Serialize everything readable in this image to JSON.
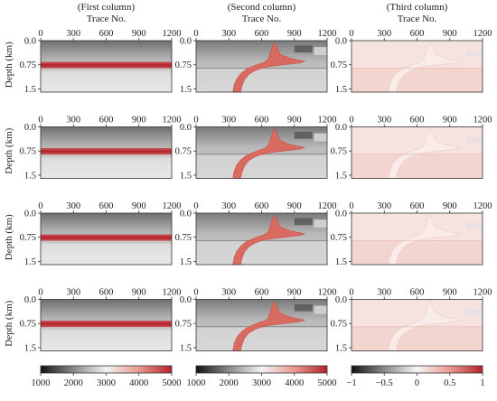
{
  "column_titles": [
    "(First column)",
    "(Second column)",
    "(Third column)"
  ],
  "colorbars": [
    {
      "ticks": [
        "1000",
        "2000",
        "3000",
        "4000",
        "5000"
      ],
      "stops": [
        "#111111",
        "#8a8a8a",
        "#f2f2f2",
        "#e99a90",
        "#b3222a"
      ]
    },
    {
      "ticks": [
        "1000",
        "2000",
        "3000",
        "4000",
        "5000"
      ],
      "stops": [
        "#111111",
        "#8a8a8a",
        "#f2f2f2",
        "#e99a90",
        "#b3222a"
      ]
    },
    {
      "ticks": [
        "−1",
        "−0.5",
        "0",
        "0.5",
        "1"
      ],
      "stops": [
        "#111111",
        "#8a8a8a",
        "#f5f5f5",
        "#e99a90",
        "#b3222a"
      ]
    }
  ],
  "chart_data": {
    "type": "heatmap",
    "rows": 4,
    "columns": [
      "(First column)",
      "(Second column)",
      "(Third column)"
    ],
    "xlabel": "Trace No.",
    "ylabel": "Depth (km)",
    "xticks": [
      0,
      300,
      600,
      900,
      1200
    ],
    "xtick_labels": [
      "0",
      "300",
      "600",
      "900",
      "1200"
    ],
    "xlim": [
      0,
      1200
    ],
    "yticks": [
      0.0,
      0.75,
      1.5
    ],
    "ytick_labels": [
      "0.0",
      "0.75",
      "1.5"
    ],
    "ylim": [
      0,
      1.6
    ],
    "colorbars": [
      {
        "column": 1,
        "range": [
          1000,
          5000
        ],
        "ticks": [
          1000,
          2000,
          3000,
          4000,
          5000
        ]
      },
      {
        "column": 2,
        "range": [
          1000,
          5000
        ],
        "ticks": [
          1000,
          2000,
          3000,
          4000,
          5000
        ]
      },
      {
        "column": 3,
        "range": [
          -1,
          1
        ],
        "ticks": [
          -1,
          -0.5,
          0,
          0.5,
          1
        ]
      }
    ]
  }
}
